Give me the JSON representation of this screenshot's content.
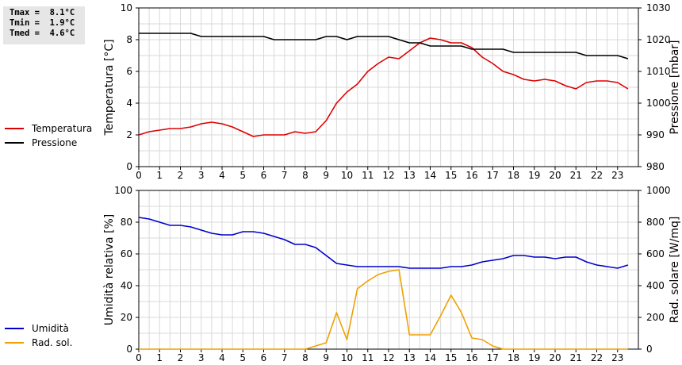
{
  "stats": {
    "lines": [
      "Tmax =  8.1°C",
      "Tmin =  1.9°C",
      "Tmed =  4.6°C"
    ]
  },
  "legend_top": [
    {
      "label": "Temperatura",
      "color": "#dd0000"
    },
    {
      "label": "Pressione",
      "color": "#000000"
    }
  ],
  "legend_bottom": [
    {
      "label": "Umidità",
      "color": "#0000cc"
    },
    {
      "label": "Rad. sol.",
      "color": "#f0a000"
    }
  ],
  "chart_data": [
    {
      "type": "line",
      "xlabel": "",
      "x_ticks": [
        "0",
        "1",
        "2",
        "3",
        "4",
        "5",
        "6",
        "7",
        "8",
        "9",
        "10",
        "11",
        "12",
        "13",
        "14",
        "15",
        "16",
        "17",
        "18",
        "19",
        "20",
        "21",
        "22",
        "23"
      ],
      "xlim": [
        0,
        24
      ],
      "grid": true,
      "left_axis": {
        "label": "Temperatura [°C]",
        "lim": [
          0,
          10
        ],
        "ticks": [
          "0",
          "2",
          "4",
          "6",
          "8",
          "10"
        ]
      },
      "right_axis": {
        "label": "Pressione [mbar]",
        "lim": [
          980,
          1030
        ],
        "ticks": [
          "980",
          "990",
          "1000",
          "1010",
          "1020",
          "1030"
        ]
      },
      "series": [
        {
          "name": "Temperatura",
          "axis": "left",
          "color": "#dd0000",
          "x": [
            0,
            0.5,
            1,
            1.5,
            2,
            2.5,
            3,
            3.5,
            4,
            4.5,
            5,
            5.5,
            6,
            6.5,
            7,
            7.5,
            8,
            8.5,
            9,
            9.5,
            10,
            10.5,
            11,
            11.5,
            12,
            12.5,
            13,
            13.5,
            14,
            14.5,
            15,
            15.5,
            16,
            16.5,
            17,
            17.5,
            18,
            18.5,
            19,
            19.5,
            20,
            20.5,
            21,
            21.5,
            22,
            22.5,
            23,
            23.5
          ],
          "values": [
            2.0,
            2.2,
            2.3,
            2.4,
            2.4,
            2.5,
            2.7,
            2.8,
            2.7,
            2.5,
            2.2,
            1.9,
            2.0,
            2.0,
            2.0,
            2.2,
            2.1,
            2.2,
            2.9,
            4.0,
            4.7,
            5.2,
            6.0,
            6.5,
            6.9,
            6.8,
            7.3,
            7.8,
            8.1,
            8.0,
            7.8,
            7.8,
            7.5,
            6.9,
            6.5,
            6.0,
            5.8,
            5.5,
            5.4,
            5.5,
            5.4,
            5.1,
            4.9,
            5.3,
            5.4,
            5.4,
            5.3,
            4.9
          ]
        },
        {
          "name": "Pressione",
          "axis": "right",
          "color": "#000000",
          "x": [
            0,
            0.5,
            1,
            1.5,
            2,
            2.5,
            3,
            3.5,
            4,
            4.5,
            5,
            5.5,
            6,
            6.5,
            7,
            7.5,
            8,
            8.5,
            9,
            9.5,
            10,
            10.5,
            11,
            11.5,
            12,
            12.5,
            13,
            13.5,
            14,
            14.5,
            15,
            15.5,
            16,
            16.5,
            17,
            17.5,
            18,
            18.5,
            19,
            19.5,
            20,
            20.5,
            21,
            21.5,
            22,
            22.5,
            23,
            23.5
          ],
          "values": [
            1022,
            1022,
            1022,
            1022,
            1022,
            1022,
            1021,
            1021,
            1021,
            1021,
            1021,
            1021,
            1021,
            1020,
            1020,
            1020,
            1020,
            1020,
            1021,
            1021,
            1020,
            1021,
            1021,
            1021,
            1021,
            1020,
            1019,
            1019,
            1018,
            1018,
            1018,
            1018,
            1017,
            1017,
            1017,
            1017,
            1016,
            1016,
            1016,
            1016,
            1016,
            1016,
            1016,
            1015,
            1015,
            1015,
            1015,
            1014
          ]
        }
      ]
    },
    {
      "type": "line",
      "xlabel": "",
      "x_ticks": [
        "0",
        "1",
        "2",
        "3",
        "4",
        "5",
        "6",
        "7",
        "8",
        "9",
        "10",
        "11",
        "12",
        "13",
        "14",
        "15",
        "16",
        "17",
        "18",
        "19",
        "20",
        "21",
        "22",
        "23"
      ],
      "xlim": [
        0,
        24
      ],
      "grid": true,
      "left_axis": {
        "label": "Umidità relativa [%]",
        "lim": [
          0,
          100
        ],
        "ticks": [
          "0",
          "20",
          "40",
          "60",
          "80",
          "100"
        ]
      },
      "right_axis": {
        "label": "Rad. solare [W/mq]",
        "lim": [
          0,
          1000
        ],
        "ticks": [
          "0",
          "200",
          "400",
          "600",
          "800",
          "1000"
        ]
      },
      "series": [
        {
          "name": "Umidità",
          "axis": "left",
          "color": "#0000cc",
          "x": [
            0,
            0.5,
            1,
            1.5,
            2,
            2.5,
            3,
            3.5,
            4,
            4.5,
            5,
            5.5,
            6,
            6.5,
            7,
            7.5,
            8,
            8.5,
            9,
            9.5,
            10,
            10.5,
            11,
            11.5,
            12,
            12.5,
            13,
            13.5,
            14,
            14.5,
            15,
            15.5,
            16,
            16.5,
            17,
            17.5,
            18,
            18.5,
            19,
            19.5,
            20,
            20.5,
            21,
            21.5,
            22,
            22.5,
            23,
            23.5
          ],
          "values": [
            83,
            82,
            80,
            78,
            78,
            77,
            75,
            73,
            72,
            72,
            74,
            74,
            73,
            71,
            69,
            66,
            66,
            64,
            59,
            54,
            53,
            52,
            52,
            52,
            52,
            52,
            51,
            51,
            51,
            51,
            52,
            52,
            53,
            55,
            56,
            57,
            59,
            59,
            58,
            58,
            57,
            58,
            58,
            55,
            53,
            52,
            51,
            53
          ]
        },
        {
          "name": "Rad. sol.",
          "axis": "right",
          "color": "#f0a000",
          "x": [
            0,
            1,
            2,
            3,
            4,
            5,
            6,
            7,
            8,
            8.5,
            9,
            9.5,
            10,
            10.5,
            11,
            11.5,
            12,
            12.5,
            13,
            13.5,
            14,
            14.5,
            15,
            15.5,
            16,
            16.5,
            17,
            17.5,
            18,
            19,
            20,
            21,
            22,
            23,
            23.5
          ],
          "values": [
            0,
            0,
            0,
            0,
            0,
            0,
            0,
            0,
            0,
            20,
            40,
            230,
            60,
            380,
            430,
            470,
            490,
            500,
            90,
            90,
            90,
            210,
            340,
            230,
            70,
            60,
            20,
            0,
            0,
            0,
            0,
            0,
            0,
            0,
            0
          ]
        }
      ]
    }
  ]
}
